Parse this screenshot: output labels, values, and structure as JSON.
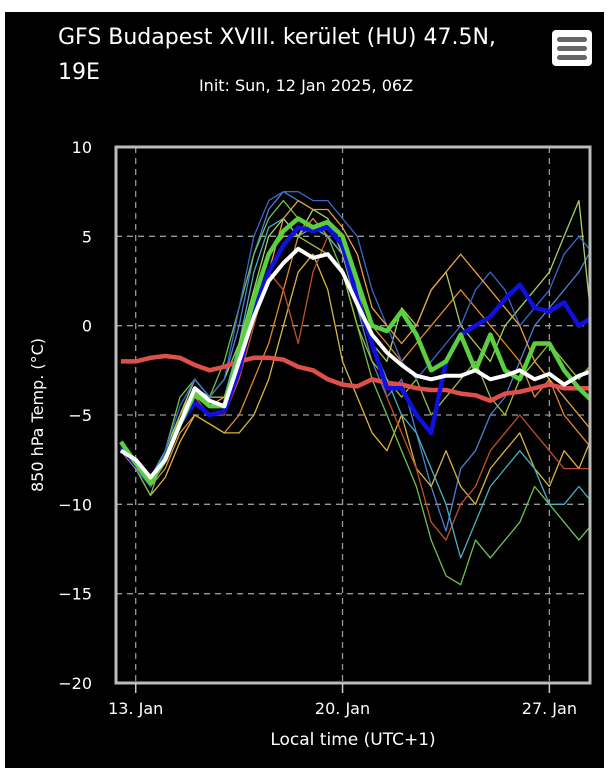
{
  "header": {
    "title": "GFS Budapest XVIII. kerület (HU) 47.5N, 19E",
    "subtitle": "Init: Sun, 12 Jan 2025, 06Z",
    "menu_icon": "hamburger-menu-icon"
  },
  "chart_data": {
    "type": "line",
    "title": "GFS Budapest XVIII. kerület (HU) 47.5N, 19E",
    "subtitle": "Init: Sun, 12 Jan 2025, 06Z",
    "xlabel": "Local time (UTC+1)",
    "ylabel": "850 hPa Temp. (°C)",
    "ylim": [
      -20,
      10
    ],
    "yticks": [
      10,
      5,
      0,
      -5,
      -10,
      -15,
      -20
    ],
    "ytick_labels": [
      "10",
      "5",
      "0",
      "−5",
      "−10",
      "−15",
      "−20"
    ],
    "xlim": [
      "2025-01-12T08:00",
      "2025-01-28T09:00"
    ],
    "xticks": [
      "2025-01-13T00:00",
      "2025-01-20T00:00",
      "2025-01-27T00:00"
    ],
    "xtick_labels": [
      "13. Jan",
      "20. Jan",
      "27. Jan"
    ],
    "grid": true,
    "background": "#000000",
    "x_start": "2025-01-12T12:00",
    "x_step_hours": 12,
    "series": [
      {
        "role": "ensemble",
        "color": "#4f7fcf",
        "values": [
          -7,
          -8,
          -9,
          -7,
          -5,
          -3,
          -4,
          -3,
          0,
          4,
          6.5,
          7.5,
          7,
          6.5,
          6,
          4,
          1,
          -2,
          -4,
          -3,
          -6,
          -9,
          -11.5,
          -8,
          -7,
          -5,
          -4,
          -2,
          0,
          1,
          2,
          3,
          4.5
        ]
      },
      {
        "role": "ensemble",
        "color": "#e0892c",
        "values": [
          -7,
          -7.5,
          -9,
          -8,
          -6,
          -5,
          -5.5,
          -6,
          -5,
          -3,
          -1,
          2,
          5,
          6,
          5,
          4,
          2,
          0,
          -1,
          -2,
          -1,
          0,
          1,
          2,
          1,
          0,
          -1,
          -2,
          -4,
          -3,
          -5,
          -6,
          -7
        ]
      },
      {
        "role": "ensemble",
        "color": "#d8b440",
        "values": [
          -7,
          -8,
          -9.5,
          -8.5,
          -6.5,
          -5,
          -5.5,
          -6,
          -6,
          -5,
          -3,
          0,
          3,
          4,
          2,
          -2,
          -4,
          -6,
          -7,
          -5,
          -8,
          -9,
          -7,
          -9,
          -10,
          -8,
          -7,
          -6,
          -8,
          -9,
          -7,
          -8,
          -6
        ]
      },
      {
        "role": "ensemble",
        "color": "#72c050",
        "values": [
          -6.5,
          -8,
          -9.5,
          -7,
          -4,
          -3,
          -4,
          -2,
          1,
          4,
          6,
          7,
          6,
          5.5,
          5,
          3,
          0,
          -3,
          -5,
          -7,
          -9,
          -12,
          -14,
          -14.5,
          -12,
          -13,
          -12,
          -11,
          -9,
          -10,
          -11,
          -12,
          -11
        ]
      },
      {
        "role": "ensemble",
        "color": "#c0502a",
        "values": [
          -7,
          -8,
          -9,
          -7.5,
          -5,
          -4,
          -5,
          -5,
          -3,
          0,
          3,
          2,
          -1,
          3,
          5,
          4,
          2,
          -1,
          -4,
          -6,
          -8,
          -11,
          -12,
          -10,
          -9,
          -7,
          -6,
          -5,
          -6,
          -7,
          -8,
          -8,
          -8
        ]
      },
      {
        "role": "ensemble",
        "color": "#4ab0c0",
        "values": [
          -7,
          -8,
          -8.5,
          -7,
          -5,
          -3,
          -4,
          -4,
          -1,
          3,
          5.5,
          6,
          5,
          5.5,
          5,
          4,
          2,
          -1,
          -3,
          -5,
          -6,
          -8,
          -10,
          -13,
          -11,
          -9,
          -8,
          -7,
          -8,
          -10,
          -10,
          -9,
          -10
        ]
      },
      {
        "role": "ensemble",
        "color": "#a8d060",
        "values": [
          -6.5,
          -7.5,
          -9,
          -7,
          -5,
          -3,
          -4,
          -3,
          -1,
          2,
          5,
          6,
          5,
          6.5,
          6,
          4,
          1,
          -1,
          -2,
          1,
          0,
          2,
          3,
          0,
          -1,
          -2,
          0,
          1,
          2,
          3,
          5,
          7,
          -1
        ]
      },
      {
        "role": "ensemble",
        "color": "#9cc040",
        "values": [
          -7,
          -7.8,
          -9,
          -7.5,
          -5,
          -3.5,
          -4,
          -4,
          -2,
          1,
          4,
          5,
          5,
          4.5,
          4,
          3,
          0,
          -2,
          -3,
          -4,
          -3,
          -5,
          -4,
          -3,
          -2,
          -4,
          -5,
          -3,
          -2,
          -1,
          -2,
          -3,
          -2
        ]
      },
      {
        "role": "ensemble",
        "color": "#3a68c8",
        "values": [
          -7,
          -8,
          -9,
          -7,
          -4.5,
          -3,
          -4,
          -3,
          1,
          5,
          7,
          7.5,
          7.5,
          7,
          7,
          6,
          5,
          2,
          0,
          -2,
          -3,
          -2,
          -1,
          0,
          2,
          3,
          2,
          0,
          1,
          2,
          4,
          5,
          4
        ]
      },
      {
        "role": "ensemble",
        "color": "#e8a040",
        "values": [
          -7,
          -8,
          -8.5,
          -7.5,
          -5.5,
          -4,
          -4.5,
          -4,
          -2,
          1,
          3,
          6,
          7,
          6.5,
          6.5,
          5.5,
          4,
          1,
          0,
          -1,
          0,
          2,
          3,
          4,
          3,
          2,
          1,
          0,
          -2,
          -3,
          -4,
          -5,
          -6
        ]
      },
      {
        "role": "climatology",
        "color": "#e0504a",
        "values": [
          -2,
          -2,
          -1.8,
          -1.7,
          -1.8,
          -2.2,
          -2.5,
          -2.3,
          -2,
          -1.8,
          -1.8,
          -1.9,
          -2.3,
          -2.5,
          -3,
          -3.3,
          -3.4,
          -3,
          -3.2,
          -3.3,
          -3.5,
          -3.6,
          -3.6,
          -3.8,
          -3.9,
          -4.2,
          -3.8,
          -3.7,
          -3.5,
          -3.3,
          -3.5,
          -3.5,
          -3.5
        ]
      },
      {
        "role": "operational",
        "color": "#1010e0",
        "values": [
          -6.8,
          -7.8,
          -8.5,
          -7.5,
          -5.5,
          -4.3,
          -5,
          -4.8,
          -2.5,
          1,
          3,
          4.5,
          5.5,
          5.3,
          5.5,
          4.5,
          1.5,
          -1,
          -3.5,
          -3.5,
          -5,
          -6,
          -2,
          -0.5,
          0,
          0.5,
          1.5,
          2.3,
          1,
          0.8,
          1.3,
          0,
          0.5
        ]
      },
      {
        "role": "control",
        "color": "#5ad040",
        "values": [
          -6.5,
          -7.7,
          -8.8,
          -7.5,
          -5.5,
          -3.8,
          -4.5,
          -4.5,
          -1.5,
          1.5,
          4,
          5.3,
          6,
          5.5,
          5.8,
          5,
          2.5,
          0,
          -0.3,
          0.8,
          -0.5,
          -2.5,
          -2,
          -0.5,
          -2.5,
          -0.5,
          -2.5,
          -3,
          -1,
          -1,
          -2.5,
          -3.5,
          -4.3
        ]
      },
      {
        "role": "mean",
        "color": "#ffffff",
        "values": [
          -7,
          -7.5,
          -8.5,
          -7.5,
          -5.5,
          -3.5,
          -4.2,
          -4.5,
          -2,
          0.5,
          2.5,
          3.5,
          4.3,
          3.8,
          4,
          3,
          1.2,
          -0.5,
          -1.5,
          -2.2,
          -2.8,
          -3,
          -2.8,
          -2.8,
          -2.5,
          -3,
          -2.8,
          -2.5,
          -3,
          -2.7,
          -3.3,
          -2.8,
          -2.5
        ]
      }
    ]
  }
}
